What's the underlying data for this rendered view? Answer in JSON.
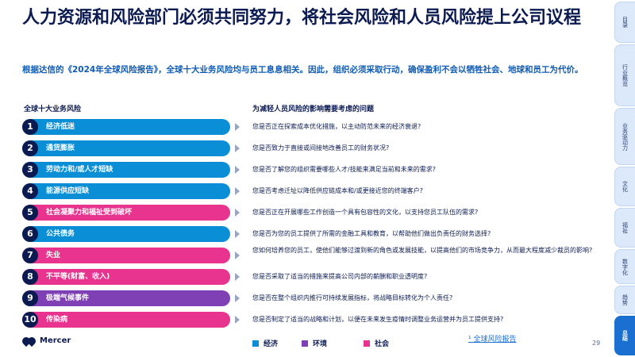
{
  "title": "人力资源和风险部门必须共同努力，将社会风险和人员风险提上公司议程",
  "subtitle": "根据达信的《2024年全球风险报告》，全球十大业务风险均与员工息息相关。因此，组织必须采取行动，确保盈利不会以牺牲社会、地球和员工为代价。",
  "left_header": "全球十大业务风险",
  "right_header": "为减轻人员风险的影响需要考虑的问题",
  "risks": [
    {
      "num": "1",
      "label": "经济低迷",
      "category": "economy",
      "question": "您是否正在探索成本优化措施，以主动防范未来的经济衰退?"
    },
    {
      "num": "2",
      "label": "通货膨胀",
      "category": "economy",
      "question": "您是否致力于直接或间接地改善员工的财务状况?"
    },
    {
      "num": "3",
      "label": "劳动力和/或人才短缺",
      "category": "economy",
      "question": "您是否了解您的组织需要哪些人才/技能来满足当前和未来的需求?"
    },
    {
      "num": "4",
      "label": "能源供应短缺",
      "category": "economy",
      "question": "您是否考虑迁址以降低供应链成本和/或更接近您的终端客户?"
    },
    {
      "num": "5",
      "label": "社会凝聚力和福祉受到破坏",
      "category": "society",
      "question": "您是否正在开展哪些工作创造一个具有包容性的文化，以支持您员工队伍的需求?"
    },
    {
      "num": "6",
      "label": "公共债务",
      "category": "economy",
      "question": "您是否为您的员工提供了所需的金融工具和教育，以帮助他们做出负责任的财务选择?"
    },
    {
      "num": "7",
      "label": "失业",
      "category": "society",
      "question": "您如何培养您的员工，使他们能够过渡到新的角色或发展技能，以提高他们的市场竞争力，从而最大程度减少裁员的影响?"
    },
    {
      "num": "8",
      "label": "不平等(财富、收入)",
      "category": "society",
      "question": "您是否采取了适当的措施来提高公司内部的薪酬和职业透明度?"
    },
    {
      "num": "9",
      "label": "极端气候事件",
      "category": "environment",
      "question": "您是否在整个组织内推行可持续发展指标，将战略目标转化为个人责任?"
    },
    {
      "num": "10",
      "label": "传染病",
      "category": "society",
      "question": "您是否制定了适当的战略和计划，以便在未来发生疫情时调整业务运营并为员工提供支持?"
    }
  ],
  "legend": {
    "economy": "经济",
    "environment": "环境",
    "society": "社会"
  },
  "colors": {
    "economy": "#0a8fd6",
    "environment": "#7f3fb5",
    "society": "#e8348e"
  },
  "logo": "Mercer",
  "footnote": "¹ 全球风险报告",
  "page_number": "29",
  "side_tabs": [
    {
      "label": "目录",
      "active": false
    },
    {
      "label": "行业概览",
      "active": false
    },
    {
      "label": "业务驱动力",
      "active": false
    },
    {
      "label": "文化",
      "active": false
    },
    {
      "label": "福祉",
      "active": false
    },
    {
      "label": "数字化",
      "active": false
    },
    {
      "label": "趋势",
      "active": false
    },
    {
      "label": "总结",
      "active": true
    }
  ]
}
